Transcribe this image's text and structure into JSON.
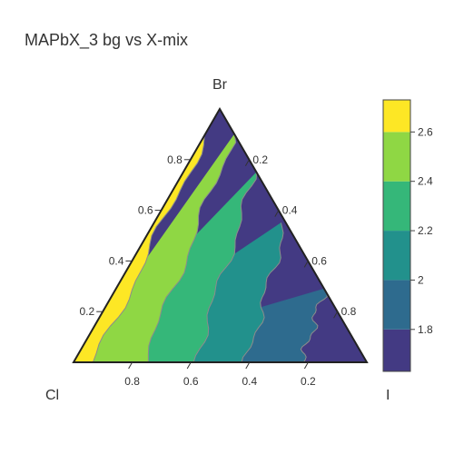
{
  "chart_data": {
    "type": "ternary-contour",
    "title": "MAPbX_3 bg vs X-mix",
    "vertices": {
      "top": "Br",
      "left": "Cl",
      "right": "I"
    },
    "axis_ticks": {
      "br": [
        "0.2",
        "0.4",
        "0.6",
        "0.8"
      ],
      "i": [
        "0.2",
        "0.4",
        "0.6",
        "0.8"
      ],
      "cl": [
        "0.8",
        "0.6",
        "0.4",
        "0.2"
      ]
    },
    "colorbar": {
      "range": [
        1.63,
        2.73
      ],
      "ticks": [
        "1.8",
        "2",
        "2.2",
        "2.4",
        "2.6"
      ],
      "tick_values": [
        1.8,
        2.0,
        2.2,
        2.4,
        2.6
      ]
    },
    "levels": [
      {
        "min": 1.6,
        "max": 1.8,
        "color": "#433a83"
      },
      {
        "min": 1.8,
        "max": 2.0,
        "color": "#2e6b8e"
      },
      {
        "min": 2.0,
        "max": 2.2,
        "color": "#22918c"
      },
      {
        "min": 2.2,
        "max": 2.4,
        "color": "#35b779"
      },
      {
        "min": 2.4,
        "max": 2.6,
        "color": "#8fd744"
      },
      {
        "min": 2.6,
        "max": 2.8,
        "color": "#fde725"
      }
    ],
    "contour_I_fraction": [
      {
        "level": 1.8,
        "cl_zero": 0.78,
        "br_zero": 0.71
      },
      {
        "level": 2.0,
        "cl_zero": 0.59,
        "br_zero": 0.45
      },
      {
        "level": 2.2,
        "cl_zero": 0.41,
        "br_zero": 0.25
      },
      {
        "level": 2.4,
        "cl_zero": 0.24,
        "br_zero": 0.1
      },
      {
        "level": 2.6,
        "cl_zero": 0.07,
        "br_zero": 0.0
      }
    ]
  }
}
